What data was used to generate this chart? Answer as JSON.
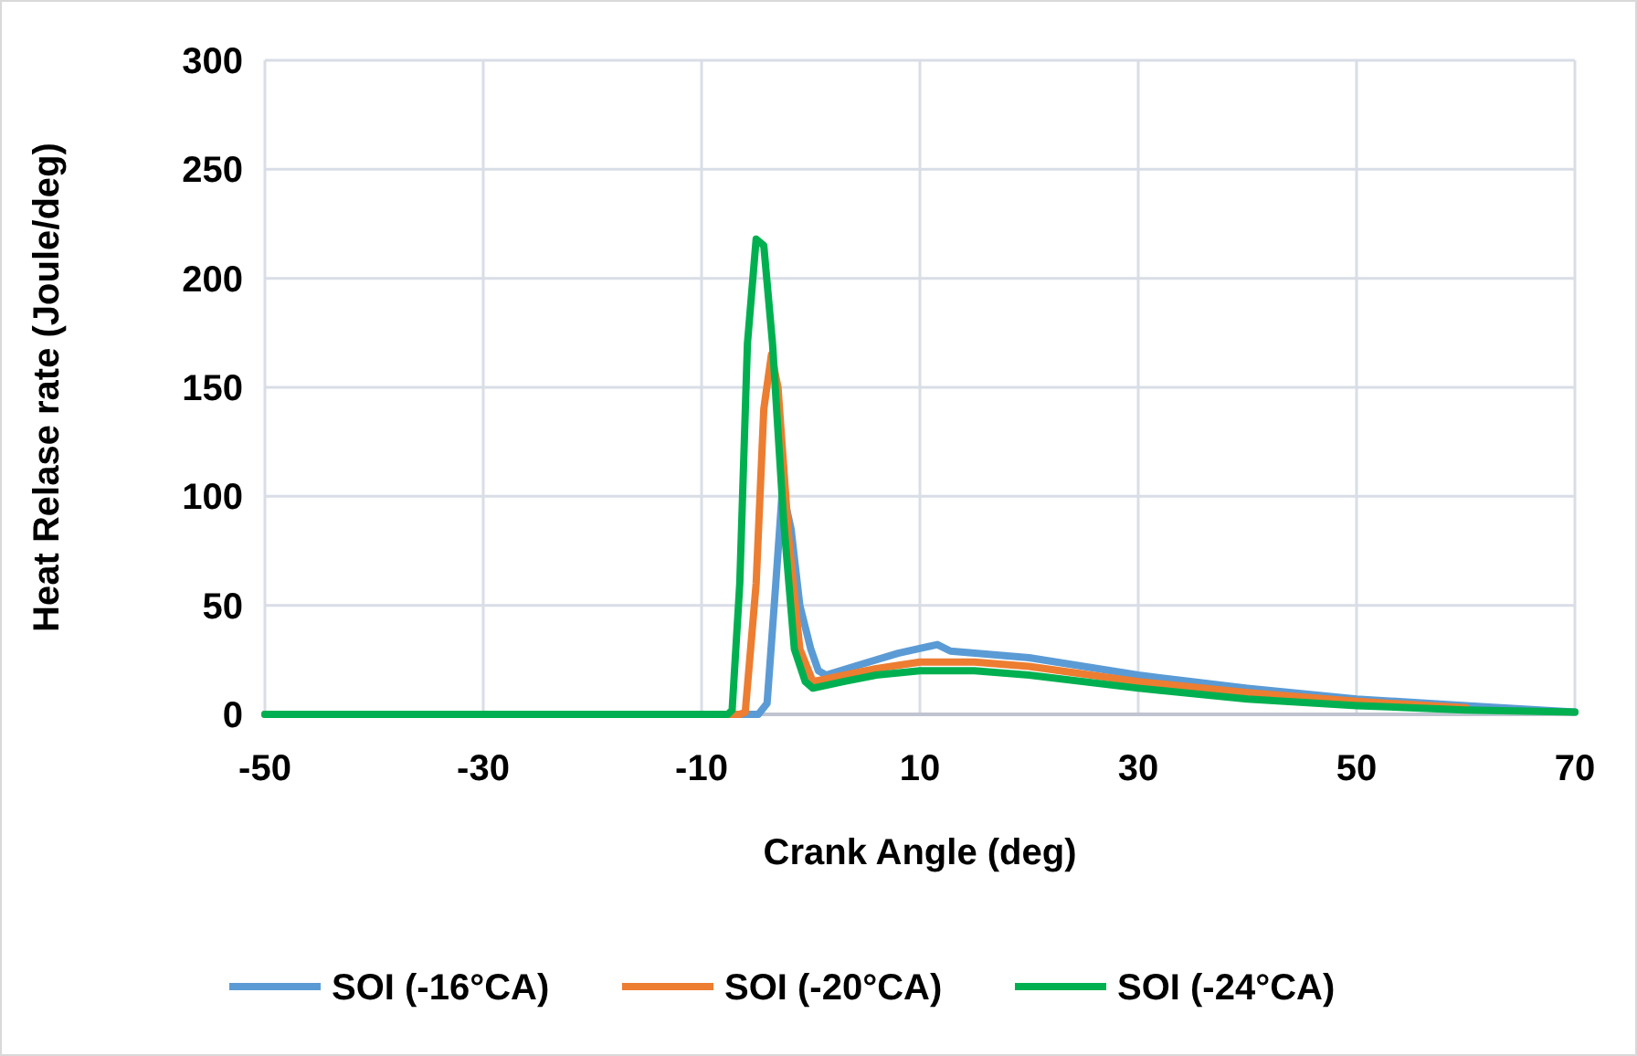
{
  "chart_data": {
    "type": "line",
    "xlabel": "Crank Angle (deg)",
    "ylabel": "Heat Relase rate (Joule/deg)",
    "xlim": [
      -50,
      70
    ],
    "ylim": [
      0,
      300
    ],
    "xticks": [
      -50,
      -30,
      -10,
      10,
      30,
      50,
      70
    ],
    "yticks": [
      0,
      50,
      100,
      150,
      200,
      250,
      300
    ],
    "grid": true,
    "legend": "bottom",
    "marker": "none",
    "line_style": "solid",
    "series": [
      {
        "name": "SOI (-16°CA)",
        "color": "#5b9bd5",
        "x": [
          -50,
          -5,
          -4.8,
          -4,
          -3.2,
          -2.6,
          -1.8,
          -1,
          0,
          0.7,
          1.4,
          4,
          8,
          11.6,
          12.8,
          20,
          30,
          40,
          50,
          60,
          70
        ],
        "values": [
          0,
          0,
          0,
          5,
          60,
          103,
          85,
          50,
          30,
          20,
          18,
          22,
          28,
          32,
          29,
          26,
          18,
          12,
          7,
          4,
          1
        ]
      },
      {
        "name": "SOI (-20°CA)",
        "color": "#ed7d31",
        "x": [
          -50,
          -6.5,
          -6,
          -5,
          -4.3,
          -3.6,
          -3,
          -2,
          -1,
          0.2,
          3,
          6,
          10,
          15,
          20,
          30,
          40,
          50,
          60
        ],
        "values": [
          0,
          0,
          1,
          60,
          140,
          165,
          150,
          80,
          30,
          15,
          18,
          21,
          24,
          24,
          22,
          15,
          10,
          6,
          3
        ]
      },
      {
        "name": "SOI (-24°CA)",
        "color": "#00b050",
        "x": [
          -50,
          -7.6,
          -7.2,
          -6.5,
          -5.8,
          -5,
          -4.3,
          -3.5,
          -2.5,
          -1.5,
          -0.5,
          0.2,
          3,
          6,
          10,
          15,
          20,
          30,
          40,
          50,
          60,
          70
        ],
        "values": [
          0,
          0,
          2,
          60,
          170,
          218,
          215,
          170,
          90,
          30,
          15,
          12,
          15,
          18,
          20,
          20,
          18,
          12,
          7,
          4,
          2,
          1
        ]
      }
    ]
  }
}
